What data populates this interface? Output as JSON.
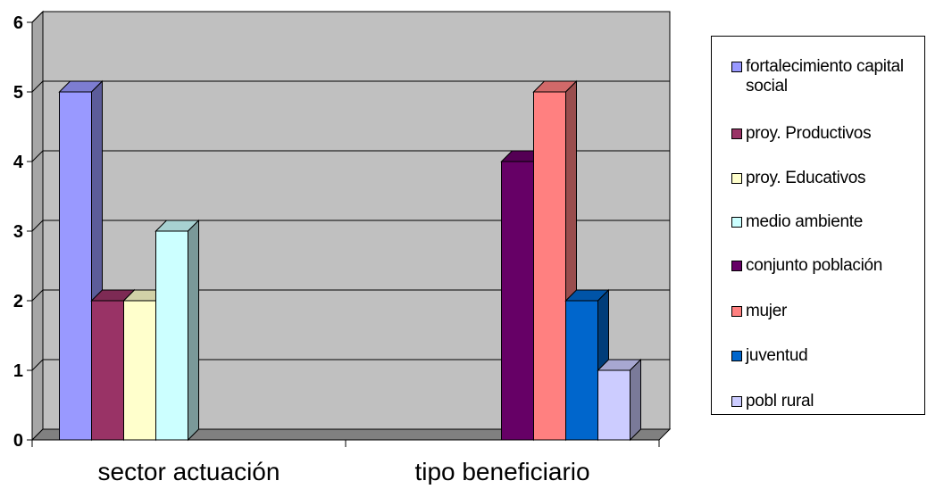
{
  "chart_data": {
    "type": "bar",
    "categories": [
      "sector actuación",
      "tipo beneficiario"
    ],
    "series": [
      {
        "name": "fortalecimiento capital social",
        "values": [
          5,
          0
        ],
        "color": "#9999FF"
      },
      {
        "name": "proy. Productivos",
        "values": [
          2,
          0
        ],
        "color": "#993366"
      },
      {
        "name": "proy. Educativos",
        "values": [
          2,
          0
        ],
        "color": "#FFFFCC"
      },
      {
        "name": "medio ambiente",
        "values": [
          3,
          0
        ],
        "color": "#CCFFFF"
      },
      {
        "name": "conjunto población",
        "values": [
          0,
          4
        ],
        "color": "#660066"
      },
      {
        "name": "mujer",
        "values": [
          0,
          5
        ],
        "color": "#FF8080"
      },
      {
        "name": "juventud",
        "values": [
          0,
          2
        ],
        "color": "#0066CC"
      },
      {
        "name": "pobl rural",
        "values": [
          0,
          1
        ],
        "color": "#CCCCFF"
      }
    ],
    "yticks": [
      "0",
      "1",
      "2",
      "3",
      "4",
      "5",
      "6"
    ],
    "ylim": [
      0,
      6
    ],
    "grid": true,
    "legend_position": "right",
    "title": "",
    "xlabel": "",
    "ylabel": ""
  }
}
